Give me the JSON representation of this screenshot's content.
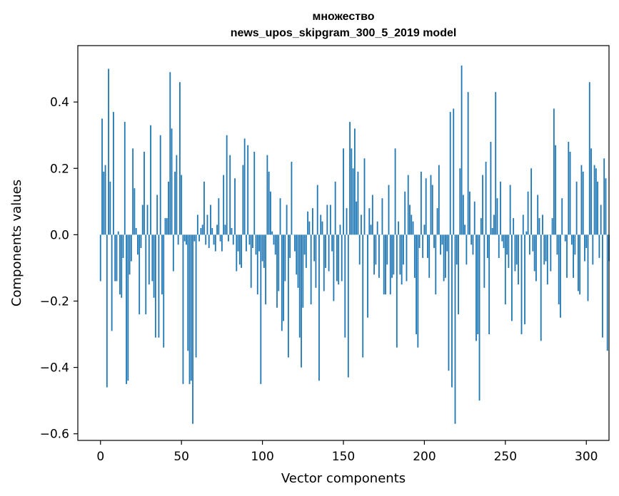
{
  "chart_data": {
    "type": "bar",
    "title": "множество",
    "subtitle": "news_upos_skipgram_300_5_2019 model",
    "xlabel": "Vector components",
    "ylabel": "Components values",
    "xlim": [
      -14,
      314
    ],
    "ylim": [
      -0.62,
      0.57
    ],
    "xticks": [
      0,
      50,
      100,
      150,
      200,
      250,
      300
    ],
    "yticks": [
      -0.6,
      -0.4,
      -0.2,
      0.0,
      0.2,
      0.4
    ],
    "xtick_labels": [
      "0",
      "50",
      "100",
      "150",
      "200",
      "250",
      "300"
    ],
    "ytick_labels": [
      "−0.6",
      "−0.4",
      "−0.2",
      "0.0",
      "0.2",
      "0.4"
    ],
    "bar_color": "#1f77b4",
    "grid": false,
    "values": [
      -0.14,
      0.35,
      0.19,
      0.21,
      -0.46,
      0.5,
      0.16,
      -0.29,
      0.37,
      -0.14,
      -0.14,
      0.01,
      -0.18,
      -0.19,
      -0.07,
      0.34,
      -0.45,
      -0.44,
      -0.12,
      -0.08,
      0.26,
      0.14,
      0.02,
      -0.06,
      -0.24,
      -0.04,
      0.09,
      0.25,
      -0.24,
      0.09,
      -0.15,
      0.33,
      -0.14,
      -0.19,
      -0.31,
      0.12,
      -0.31,
      0.3,
      -0.18,
      -0.34,
      0.05,
      0.05,
      0.16,
      0.49,
      0.32,
      -0.11,
      0.19,
      0.24,
      -0.03,
      0.46,
      0.18,
      -0.45,
      -0.02,
      -0.03,
      -0.35,
      -0.45,
      -0.44,
      -0.57,
      -0.02,
      -0.37,
      0.06,
      -0.02,
      0.02,
      0.03,
      0.16,
      -0.03,
      0.06,
      -0.04,
      0.09,
      0.02,
      -0.03,
      -0.05,
      0.03,
      0.11,
      -0.02,
      -0.05,
      0.18,
      0.03,
      0.3,
      -0.02,
      0.24,
      0.02,
      -0.03,
      0.17,
      -0.11,
      -0.05,
      -0.09,
      -0.1,
      0.21,
      0.29,
      -0.05,
      0.27,
      -0.03,
      -0.16,
      -0.04,
      0.25,
      -0.06,
      -0.18,
      -0.05,
      -0.45,
      -0.08,
      -0.1,
      -0.21,
      0.24,
      0.19,
      0.13,
      0.01,
      -0.03,
      -0.06,
      -0.22,
      -0.17,
      0.11,
      -0.29,
      -0.26,
      -0.14,
      0.09,
      -0.37,
      -0.07,
      0.22,
      0.0,
      -0.05,
      -0.12,
      -0.16,
      -0.31,
      -0.4,
      -0.22,
      -0.06,
      -0.1,
      0.07,
      0.04,
      -0.21,
      0.08,
      -0.08,
      -0.16,
      0.15,
      -0.44,
      0.06,
      0.04,
      -0.17,
      -0.1,
      0.09,
      -0.11,
      0.09,
      -0.05,
      -0.2,
      0.16,
      -0.14,
      -0.15,
      0.03,
      -0.14,
      0.26,
      -0.31,
      0.08,
      -0.43,
      0.34,
      0.26,
      0.2,
      0.32,
      0.1,
      0.19,
      -0.09,
      0.06,
      -0.37,
      0.23,
      0.0,
      -0.25,
      0.08,
      0.03,
      0.12,
      -0.12,
      -0.09,
      0.04,
      -0.13,
      0.0,
      0.11,
      -0.18,
      -0.18,
      -0.09,
      0.15,
      -0.18,
      -0.13,
      -0.12,
      0.26,
      -0.34,
      0.04,
      -0.12,
      -0.15,
      -0.09,
      0.13,
      -0.14,
      0.18,
      0.09,
      0.06,
      0.04,
      -0.13,
      -0.3,
      -0.34,
      -0.04,
      0.19,
      -0.07,
      0.03,
      0.17,
      -0.07,
      -0.13,
      0.18,
      0.15,
      -0.04,
      -0.18,
      0.08,
      0.21,
      -0.06,
      -0.03,
      -0.14,
      -0.13,
      -0.05,
      -0.41,
      0.37,
      -0.46,
      0.38,
      -0.57,
      -0.09,
      -0.24,
      0.2,
      0.51,
      0.12,
      0.03,
      -0.09,
      0.43,
      0.13,
      -0.03,
      -0.06,
      0.1,
      -0.32,
      -0.3,
      -0.5,
      0.05,
      0.18,
      -0.16,
      0.22,
      -0.07,
      -0.3,
      0.28,
      0.02,
      0.06,
      0.43,
      0.11,
      -0.07,
      0.16,
      -0.02,
      -0.04,
      -0.21,
      -0.06,
      -0.1,
      0.15,
      -0.26,
      0.05,
      -0.11,
      -0.09,
      -0.15,
      0.0,
      -0.3,
      0.06,
      -0.27,
      0.01,
      0.13,
      -0.06,
      0.2,
      -0.05,
      -0.11,
      -0.14,
      0.12,
      0.05,
      -0.32,
      0.06,
      -0.09,
      -0.08,
      -0.15,
      0.0,
      -0.11,
      0.05,
      0.38,
      0.27,
      -0.06,
      -0.21,
      -0.25,
      0.11,
      0.0,
      -0.02,
      -0.13,
      0.28,
      0.25,
      -0.03,
      -0.13,
      -0.06,
      0.16,
      -0.17,
      -0.18,
      0.21,
      0.19,
      -0.08,
      -0.04,
      -0.2,
      0.46,
      0.26,
      -0.09,
      0.21,
      0.2,
      0.16,
      -0.07,
      0.09,
      -0.31,
      0.23,
      0.17,
      -0.35,
      -0.08
    ]
  }
}
